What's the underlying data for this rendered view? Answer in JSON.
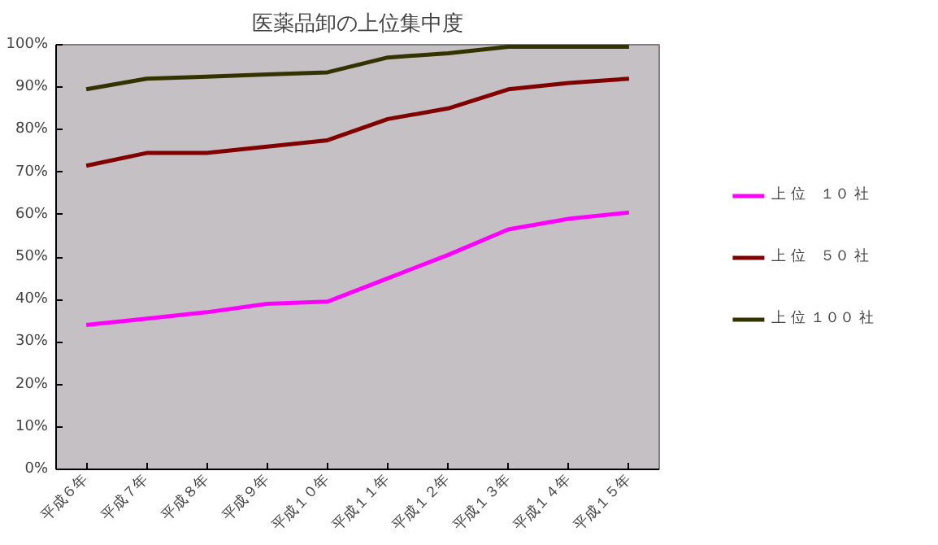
{
  "chart_data": {
    "type": "line",
    "title": "医薬品卸の上位集中度",
    "categories": [
      "平成６年",
      "平成７年",
      "平成８年",
      "平成９年",
      "平成１０年",
      "平成１１年",
      "平成１２年",
      "平成１３年",
      "平成１４年",
      "平成１５年"
    ],
    "series": [
      {
        "name": "上 位　１０ 社",
        "color": "#ff00ff",
        "values": [
          34,
          35.5,
          37,
          39,
          39.5,
          45,
          50.5,
          56.5,
          59,
          60.5
        ]
      },
      {
        "name": "上 位　５０ 社",
        "color": "#800000",
        "values": [
          71.5,
          74.5,
          74.5,
          76,
          77.5,
          82.5,
          85,
          89.5,
          91,
          92
        ]
      },
      {
        "name": "上 位 １００ 社",
        "color": "#333300",
        "values": [
          89.5,
          92,
          92.5,
          93,
          93.5,
          97,
          98,
          99.5,
          99.5,
          99.5
        ]
      }
    ],
    "ylim": [
      0,
      100
    ],
    "yticks": [
      {
        "value": 0,
        "label": "0%"
      },
      {
        "value": 10,
        "label": "10%"
      },
      {
        "value": 20,
        "label": "20%"
      },
      {
        "value": 30,
        "label": "30%"
      },
      {
        "value": 40,
        "label": "40%"
      },
      {
        "value": 50,
        "label": "50%"
      },
      {
        "value": 60,
        "label": "60%"
      },
      {
        "value": 70,
        "label": "70%"
      },
      {
        "value": 80,
        "label": "80%"
      },
      {
        "value": 90,
        "label": "90%"
      },
      {
        "value": 100,
        "label": "100%"
      }
    ],
    "grid": false,
    "legend": "right",
    "marker": "none",
    "line_style": "solid"
  }
}
